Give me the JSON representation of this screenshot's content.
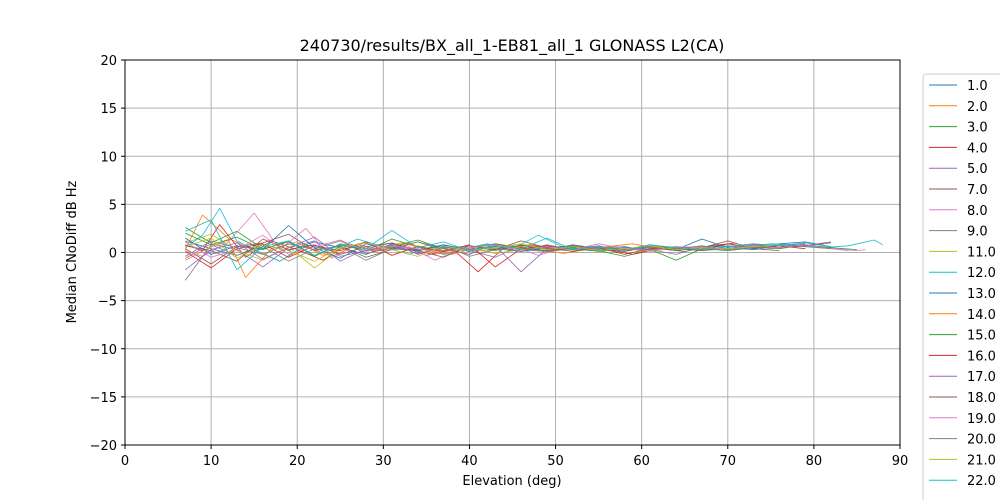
{
  "chart_data": {
    "type": "line",
    "title": "240730/results/BX_all_1-EB81_all_1 GLONASS L2(CA)",
    "xlabel": "Elevation (deg)",
    "ylabel": "Median CNoDiff dB Hz",
    "xlim": [
      0,
      90
    ],
    "ylim": [
      -20,
      20
    ],
    "xticks": [
      "0",
      "10",
      "20",
      "30",
      "40",
      "50",
      "60",
      "70",
      "80",
      "90"
    ],
    "yticks": [
      "−20",
      "−15",
      "−10",
      "−5",
      "0",
      "5",
      "10",
      "15",
      "20"
    ],
    "grid": true,
    "legend_position": "right",
    "series": [
      {
        "name": "1.0",
        "color": "#1f77b4",
        "x": [
          7,
          10,
          13,
          16,
          19,
          22,
          25,
          28,
          31,
          34,
          37,
          40,
          43,
          46,
          49,
          52,
          55,
          58,
          61,
          64,
          67,
          70,
          73,
          76,
          79,
          82
        ],
        "values": [
          1.2,
          0.4,
          -0.3,
          0.8,
          0.2,
          1.1,
          0.5,
          -0.2,
          0.9,
          0.3,
          0.6,
          0.1,
          0.7,
          0.4,
          0.2,
          0.5,
          0.3,
          0.6,
          0.2,
          0.4,
          0.5,
          0.7,
          0.4,
          0.9,
          1.1,
          0.6
        ]
      },
      {
        "name": "2.0",
        "color": "#ff7f0e",
        "x": [
          7,
          9,
          12,
          15,
          18,
          21,
          24,
          27,
          30,
          33,
          36,
          39,
          42,
          45,
          48,
          51,
          54,
          57,
          60,
          63,
          66,
          69
        ],
        "values": [
          0.3,
          3.9,
          1.5,
          0.2,
          -0.9,
          0.6,
          -0.4,
          0.8,
          0.2,
          1.0,
          -0.2,
          0.5,
          0.1,
          0.7,
          0.3,
          -0.1,
          0.4,
          0.6,
          0.2,
          0.5,
          0.3,
          0.4
        ]
      },
      {
        "name": "3.0",
        "color": "#2ca02c",
        "x": [
          7,
          10,
          13,
          16,
          19,
          22,
          25,
          28,
          31,
          34,
          37,
          40,
          43,
          46,
          49,
          52,
          55,
          58,
          61,
          64,
          67,
          70,
          73
        ],
        "values": [
          2.6,
          1.0,
          2.2,
          0.4,
          1.1,
          -0.3,
          0.8,
          0.2,
          1.4,
          0.6,
          -0.2,
          0.5,
          0.9,
          0.3,
          0.1,
          0.6,
          0.2,
          -0.4,
          0.3,
          -0.8,
          0.4,
          0.2,
          0.5
        ]
      },
      {
        "name": "4.0",
        "color": "#d62728",
        "x": [
          7,
          9,
          11,
          14,
          17,
          20,
          23,
          26,
          29,
          32,
          35,
          38,
          41,
          44,
          47,
          50,
          53,
          56,
          59,
          62,
          65,
          68,
          71
        ],
        "values": [
          0.8,
          0.2,
          2.9,
          -0.5,
          1.2,
          0.3,
          -0.8,
          0.9,
          0.1,
          0.7,
          -0.3,
          0.4,
          -2.0,
          0.5,
          0.8,
          0.2,
          0.6,
          0.3,
          -0.2,
          0.4,
          0.1,
          0.7,
          1.0
        ]
      },
      {
        "name": "5.0",
        "color": "#9467bd",
        "x": [
          7,
          10,
          13,
          16,
          19,
          22,
          25,
          28,
          31,
          34,
          37,
          40,
          43,
          46,
          49,
          52,
          55,
          58,
          61,
          64,
          67
        ],
        "values": [
          -0.6,
          0.9,
          0.3,
          -1.5,
          0.5,
          1.2,
          -0.9,
          0.4,
          1.0,
          -0.2,
          0.6,
          0.2,
          -0.5,
          0.8,
          0.1,
          0.4,
          0.7,
          0.2,
          0.5,
          0.3,
          0.6
        ]
      },
      {
        "name": "7.0",
        "color": "#8c564b",
        "x": [
          7,
          10,
          13,
          16,
          19,
          22,
          25,
          28,
          31,
          34,
          37,
          40,
          43,
          46,
          49,
          52,
          55,
          58,
          61,
          64,
          67,
          70,
          73,
          76
        ],
        "values": [
          0.4,
          -1.2,
          0.6,
          1.0,
          1.9,
          0.2,
          0.7,
          -0.5,
          0.3,
          1.1,
          0.4,
          -0.2,
          0.9,
          0.5,
          0.2,
          0.8,
          0.4,
          0.1,
          0.6,
          0.3,
          0.5,
          1.2,
          0.4,
          0.2
        ]
      },
      {
        "name": "8.0",
        "color": "#e377c2",
        "x": [
          7,
          9,
          12,
          15,
          18,
          21,
          24,
          27,
          30,
          33,
          36,
          39,
          42,
          45,
          48,
          51,
          54,
          57,
          60,
          63,
          66,
          69,
          72,
          75,
          78,
          81,
          84
        ],
        "values": [
          0.2,
          -0.4,
          1.1,
          4.1,
          0.3,
          2.5,
          -0.6,
          0.9,
          0.1,
          0.6,
          -0.8,
          0.4,
          0.2,
          0.7,
          -0.3,
          0.5,
          0.3,
          0.6,
          0.2,
          0.4,
          0.5,
          0.3,
          0.7,
          0.4,
          0.8,
          0.5,
          0.2
        ]
      },
      {
        "name": "9.0",
        "color": "#7f7f7f",
        "x": [
          7,
          10,
          13,
          16,
          19,
          22,
          25,
          28,
          31,
          34,
          37,
          40,
          43,
          46,
          49,
          52,
          55,
          58,
          61,
          64,
          67,
          70,
          73,
          76,
          79
        ],
        "values": [
          -2.9,
          0.8,
          -0.3,
          0.6,
          -0.9,
          0.4,
          1.2,
          -0.1,
          0.5,
          0.2,
          0.8,
          -0.4,
          0.3,
          0.6,
          0.1,
          0.4,
          0.2,
          0.5,
          0.3,
          0.6,
          0.2,
          0.4,
          0.7,
          0.5,
          0.9
        ]
      },
      {
        "name": "11.0",
        "color": "#bcbd22",
        "x": [
          7,
          10,
          13,
          16,
          19,
          22,
          25,
          28,
          31,
          34,
          37,
          40,
          43,
          46,
          49,
          52,
          55,
          58,
          61,
          64,
          67,
          70
        ],
        "values": [
          1.0,
          1.9,
          0.2,
          -0.8,
          0.6,
          -1.6,
          0.4,
          1.1,
          -0.3,
          0.7,
          0.2,
          0.5,
          -0.1,
          0.3,
          0.8,
          0.2,
          0.6,
          0.4,
          0.1,
          0.5,
          0.3,
          0.6
        ]
      },
      {
        "name": "12.0",
        "color": "#17becf",
        "x": [
          7,
          9,
          11,
          13,
          15,
          18,
          21,
          24,
          27,
          30,
          33,
          36,
          39,
          42,
          45,
          48,
          51,
          54,
          57,
          60,
          63,
          66,
          69,
          72,
          75,
          78,
          81,
          84,
          87,
          88
        ],
        "values": [
          0.5,
          1.8,
          4.6,
          1.2,
          0.3,
          -0.9,
          0.8,
          0.2,
          1.4,
          0.6,
          -0.2,
          0.7,
          0.3,
          0.9,
          0.4,
          1.8,
          0.5,
          0.2,
          0.6,
          0.3,
          0.5,
          0.4,
          0.7,
          0.6,
          0.9,
          0.8,
          0.5,
          0.7,
          1.3,
          0.8
        ]
      },
      {
        "name": "13.0",
        "color": "#1f77b4",
        "x": [
          7,
          10,
          13,
          16,
          19,
          22,
          25,
          28,
          31,
          34,
          37,
          40,
          43,
          46,
          49,
          52,
          55,
          58,
          61,
          64,
          67,
          70,
          73,
          76,
          79
        ],
        "values": [
          1.5,
          -0.2,
          0.7,
          0.3,
          2.8,
          0.5,
          -0.6,
          0.9,
          0.4,
          0.2,
          0.8,
          0.3,
          0.6,
          0.1,
          0.5,
          0.7,
          0.2,
          0.4,
          0.6,
          0.3,
          1.4,
          0.5,
          0.3,
          0.7,
          1.0
        ]
      },
      {
        "name": "14.0",
        "color": "#ff7f0e",
        "x": [
          7,
          10,
          12,
          14,
          17,
          20,
          23,
          26,
          29,
          32,
          35,
          38,
          41,
          44,
          47,
          50,
          53,
          56,
          59,
          62
        ],
        "values": [
          -0.8,
          0.6,
          1.3,
          -2.6,
          0.4,
          1.1,
          -0.3,
          0.7,
          0.2,
          1.0,
          0.4,
          -0.2,
          0.6,
          0.3,
          0.8,
          0.5,
          0.2,
          0.6,
          0.9,
          0.4
        ]
      },
      {
        "name": "15.0",
        "color": "#2ca02c",
        "x": [
          7,
          10,
          13,
          16,
          19,
          22,
          25,
          28,
          31,
          34,
          37,
          40,
          43,
          46,
          49,
          52,
          55,
          58,
          61,
          64,
          67,
          70,
          73,
          76,
          79,
          82,
          85
        ],
        "values": [
          2.0,
          0.8,
          1.6,
          0.3,
          1.2,
          -0.4,
          0.9,
          0.2,
          0.6,
          1.3,
          0.4,
          0.7,
          0.2,
          0.8,
          0.3,
          0.5,
          0.1,
          0.4,
          0.6,
          0.2,
          0.5,
          0.3,
          0.6,
          0.4,
          0.8,
          0.5,
          0.3
        ]
      },
      {
        "name": "16.0",
        "color": "#d62728",
        "x": [
          7,
          10,
          13,
          16,
          19,
          22,
          25,
          28,
          31,
          34,
          37,
          40,
          43,
          46,
          49,
          52,
          55,
          58,
          61,
          64,
          67,
          70,
          73,
          76,
          79
        ],
        "values": [
          0.1,
          -1.6,
          0.4,
          0.9,
          -0.5,
          0.7,
          0.2,
          1.1,
          -0.3,
          0.6,
          0.1,
          0.8,
          -1.5,
          0.4,
          0.7,
          0.3,
          0.5,
          -0.2,
          0.4,
          0.6,
          0.3,
          0.9,
          0.5,
          0.7,
          0.4
        ]
      },
      {
        "name": "17.0",
        "color": "#9467bd",
        "x": [
          7,
          10,
          13,
          16,
          19,
          22,
          25,
          28,
          31,
          34,
          37,
          40,
          43,
          46,
          49,
          52,
          55,
          58,
          61,
          64,
          67,
          70,
          73,
          76,
          79,
          82
        ],
        "values": [
          -1.8,
          0.3,
          1.0,
          -0.7,
          0.5,
          1.6,
          -0.4,
          0.2,
          0.8,
          -0.1,
          0.5,
          0.3,
          0.7,
          -2.0,
          0.4,
          0.6,
          0.2,
          0.5,
          0.3,
          -0.2,
          0.6,
          0.4,
          0.8,
          0.5,
          0.7,
          1.0
        ]
      },
      {
        "name": "18.0",
        "color": "#8c564b",
        "x": [
          7,
          10,
          13,
          16,
          19,
          22,
          25,
          28,
          31,
          34,
          37,
          40,
          43,
          46,
          49,
          52,
          55,
          58,
          61,
          64,
          67,
          70,
          73,
          76,
          79,
          82
        ],
        "values": [
          0.7,
          0.2,
          -0.9,
          1.4,
          0.3,
          0.8,
          -0.2,
          0.6,
          1.0,
          0.2,
          -0.5,
          0.7,
          0.3,
          1.2,
          0.5,
          0.1,
          0.6,
          0.3,
          0.8,
          0.4,
          0.2,
          0.6,
          0.9,
          0.5,
          0.7,
          1.1
        ]
      },
      {
        "name": "19.0",
        "color": "#e377c2",
        "x": [
          7,
          10,
          13,
          16,
          19,
          22,
          25,
          28,
          31,
          34,
          37,
          40,
          43,
          46,
          49,
          52,
          55,
          58,
          61,
          64,
          67,
          70,
          73,
          76,
          79,
          82,
          85,
          86
        ],
        "values": [
          1.1,
          -0.5,
          0.3,
          1.8,
          -0.2,
          0.6,
          1.3,
          0.1,
          0.7,
          0.4,
          -0.1,
          0.5,
          0.8,
          0.2,
          0.6,
          0.3,
          0.9,
          0.4,
          0.2,
          0.6,
          0.5,
          0.3,
          0.7,
          0.5,
          0.8,
          0.4,
          0.2,
          0.3
        ]
      },
      {
        "name": "20.0",
        "color": "#7f7f7f",
        "x": [
          7,
          10,
          13,
          16,
          19,
          22,
          25,
          28,
          31,
          34,
          37,
          40,
          43,
          46,
          49,
          52,
          55,
          58,
          61,
          64,
          67,
          70,
          73,
          76,
          79,
          82
        ],
        "values": [
          -0.4,
          1.2,
          0.5,
          -0.2,
          0.9,
          0.3,
          0.6,
          -0.8,
          0.4,
          1.1,
          0.2,
          0.7,
          0.4,
          0.1,
          0.8,
          0.3,
          0.5,
          0.2,
          0.6,
          0.4,
          0.7,
          0.3,
          0.5,
          0.8,
          0.6,
          0.4
        ]
      },
      {
        "name": "21.0",
        "color": "#bcbd22",
        "x": [
          7,
          10,
          13,
          16,
          19,
          22,
          25,
          28,
          31,
          34,
          37,
          40,
          43,
          46,
          49,
          52,
          55,
          58,
          61,
          64,
          67,
          70,
          73,
          76
        ],
        "values": [
          0.6,
          1.5,
          -0.6,
          0.8,
          0.2,
          -0.9,
          0.5,
          1.0,
          0.3,
          -0.4,
          0.7,
          0.2,
          0.5,
          0.9,
          0.3,
          0.6,
          0.2,
          0.4,
          0.7,
          0.3,
          0.5,
          0.4,
          0.6,
          0.8
        ]
      },
      {
        "name": "22.0",
        "color": "#17becf",
        "x": [
          7,
          10,
          13,
          16,
          19,
          22,
          25,
          28,
          31,
          34,
          37,
          40,
          43,
          46,
          49,
          52,
          55,
          58,
          61,
          64,
          67,
          70,
          73,
          76,
          79,
          82
        ],
        "values": [
          2.2,
          3.4,
          -1.8,
          0.6,
          1.2,
          -0.3,
          0.8,
          0.4,
          2.3,
          0.5,
          1.1,
          0.2,
          0.7,
          0.4,
          1.5,
          0.3,
          0.6,
          0.2,
          0.8,
          0.5,
          0.3,
          0.6,
          0.9,
          0.7,
          1.0,
          0.6
        ]
      }
    ]
  }
}
